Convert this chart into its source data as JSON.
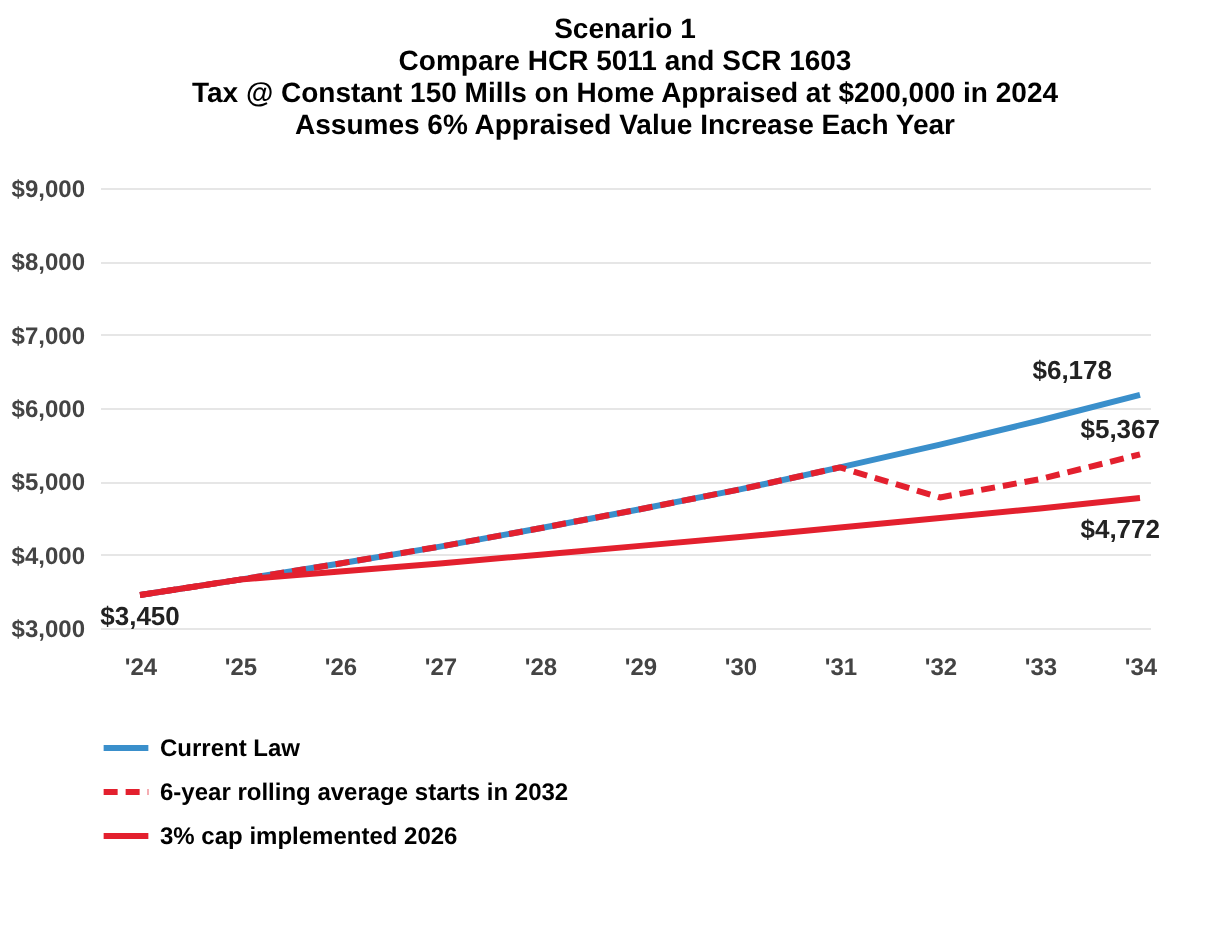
{
  "chart_data": {
    "type": "line",
    "title": "Scenario 1",
    "subtitle": "Compare HCR 5011 and SCR 1603\nTax @ Constant 150 Mills on Home Appraised at $200,000 in 2024\nAssumes 6% Appraised Value Increase Each Year",
    "categories": [
      "'24",
      "'25",
      "'26",
      "'27",
      "'28",
      "'29",
      "'30",
      "'31",
      "'32",
      "'33",
      "'34"
    ],
    "series": [
      {
        "name": "Current Law",
        "color": "#3a8fcb",
        "line_style": "solid",
        "values": [
          3450,
          3660,
          3880,
          4110,
          4360,
          4620,
          4890,
          5190,
          5500,
          5830,
          6178
        ]
      },
      {
        "name": "6-year rolling average starts in 2032",
        "color": "#e3202e",
        "line_style": "dashed",
        "values": [
          3450,
          3660,
          3880,
          4110,
          4360,
          4620,
          4890,
          5190,
          4780,
          5030,
          5367
        ]
      },
      {
        "name": "3% cap implemented 2026",
        "color": "#e3202e",
        "line_style": "solid",
        "values": [
          3450,
          3660,
          3770,
          3880,
          4000,
          4120,
          4240,
          4370,
          4500,
          4630,
          4772
        ]
      }
    ],
    "ylim": [
      3000,
      9000
    ],
    "yticks": [
      {
        "value": 3000,
        "label": "$3,000"
      },
      {
        "value": 4000,
        "label": "$4,000"
      },
      {
        "value": 5000,
        "label": "$5,000"
      },
      {
        "value": 6000,
        "label": "$6,000"
      },
      {
        "value": 7000,
        "label": "$7,000"
      },
      {
        "value": 8000,
        "label": "$8,000"
      },
      {
        "value": 9000,
        "label": "$9,000"
      }
    ],
    "grid": "y",
    "legend": "bottom",
    "annotations": [
      {
        "text": "$6,178",
        "x": "'34",
        "y": 6178
      },
      {
        "text": "$5,367",
        "x": "'34",
        "y": 5367
      },
      {
        "text": "$4,772",
        "x": "'34",
        "y": 4772
      },
      {
        "text": "$3,450",
        "x": "'24",
        "y": 3450
      }
    ]
  }
}
